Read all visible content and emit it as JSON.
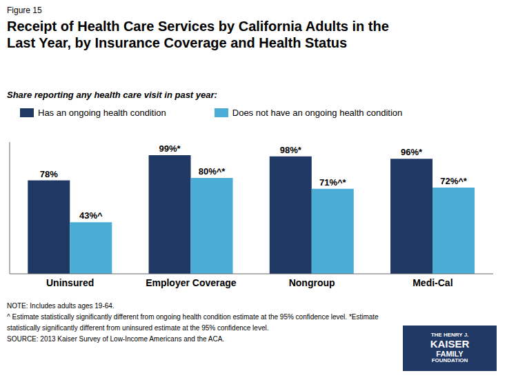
{
  "chart_data": {
    "type": "bar",
    "title": "Receipt of Health Care Services by California Adults in the\nLast Year, by Insurance Coverage and Health Status",
    "subtitle": "Share reporting any health care visit in past year:",
    "categories": [
      "Uninsured",
      "Employer Coverage",
      "Nongroup",
      "Medi-Cal"
    ],
    "series": [
      {
        "name": "Has an ongoing health condition",
        "color": "#1F3864",
        "values": [
          78,
          99,
          98,
          96
        ],
        "value_labels": [
          "78%",
          "99%*",
          "98%*",
          "96%*"
        ]
      },
      {
        "name": "Does not have an ongoing health condition",
        "color": "#4BACD6",
        "values": [
          43,
          80,
          71,
          72
        ],
        "value_labels": [
          "43%^",
          "80%^*",
          "71%^*",
          "72%^*"
        ]
      }
    ],
    "ylim": [
      0,
      110
    ],
    "data_labels": true,
    "tick_labels": "x",
    "grid": false,
    "legend": "top",
    "annotations": {
      "figure_label": "Figure 15",
      "notes": [
        "NOTE: Includes adults ages 19-64.",
        "^ Estimate statistically significantly different from ongoing health condition estimate  at the 95% confidence level. *Estimate",
        "statistically significantly different from uninsured estimate at the 95% confidence level.",
        "SOURCE: 2013 Kaiser Survey of Low-Income Americans and the ACA."
      ],
      "logo": [
        "THE HENRY J.",
        "KAISER",
        "FAMILY",
        "FOUNDATION"
      ]
    }
  }
}
